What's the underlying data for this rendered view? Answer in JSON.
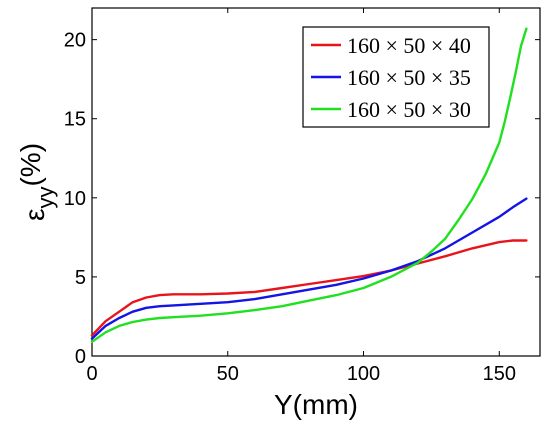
{
  "chart_data": {
    "type": "line",
    "xlabel": "Y(mm)",
    "ylabel": "ε",
    "ylabel_subscript": "yy",
    "ylabel_unit": "(%)",
    "xlim": [
      0,
      165
    ],
    "ylim": [
      0,
      22
    ],
    "xticks": [
      "0",
      "50",
      "100",
      "150"
    ],
    "yticks": [
      "0",
      "5",
      "10",
      "15",
      "20"
    ],
    "grid": false,
    "legend_position": "top-right",
    "series": [
      {
        "name": "160 × 50 × 40",
        "color": "#e8141c",
        "x": [
          0,
          5,
          10,
          15,
          20,
          25,
          30,
          40,
          50,
          60,
          70,
          80,
          90,
          100,
          110,
          120,
          130,
          140,
          150,
          155,
          160
        ],
        "y": [
          1.3,
          2.2,
          2.8,
          3.4,
          3.7,
          3.85,
          3.9,
          3.9,
          3.95,
          4.05,
          4.3,
          4.55,
          4.8,
          5.05,
          5.4,
          5.85,
          6.3,
          6.8,
          7.2,
          7.3,
          7.3
        ]
      },
      {
        "name": "160 × 50 × 35",
        "color": "#1414e6",
        "x": [
          0,
          5,
          10,
          15,
          20,
          25,
          30,
          40,
          50,
          60,
          70,
          80,
          90,
          100,
          110,
          120,
          130,
          140,
          150,
          155,
          160
        ],
        "y": [
          1.1,
          1.9,
          2.4,
          2.8,
          3.05,
          3.15,
          3.2,
          3.3,
          3.4,
          3.6,
          3.9,
          4.2,
          4.5,
          4.9,
          5.4,
          6.0,
          6.8,
          7.8,
          8.8,
          9.4,
          9.95
        ]
      },
      {
        "name": "160 × 50 × 30",
        "color": "#20e020",
        "x": [
          0,
          5,
          10,
          15,
          20,
          25,
          30,
          40,
          50,
          60,
          70,
          80,
          90,
          100,
          110,
          120,
          125,
          130,
          135,
          140,
          145,
          150,
          152,
          154,
          156,
          158,
          160
        ],
        "y": [
          0.9,
          1.5,
          1.9,
          2.15,
          2.3,
          2.4,
          2.45,
          2.55,
          2.7,
          2.9,
          3.15,
          3.5,
          3.85,
          4.3,
          5.0,
          5.9,
          6.6,
          7.4,
          8.6,
          9.9,
          11.5,
          13.5,
          14.8,
          16.3,
          17.9,
          19.6,
          20.7
        ]
      }
    ]
  }
}
